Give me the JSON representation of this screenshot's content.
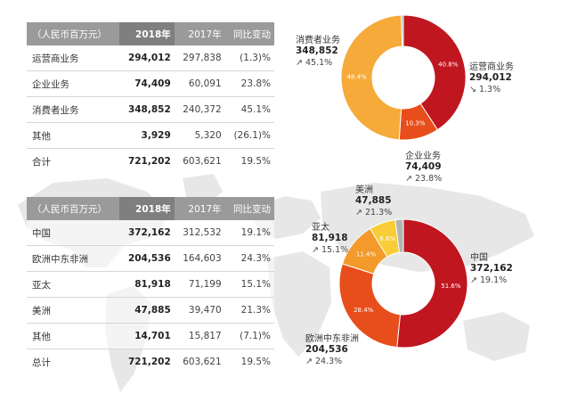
{
  "table1": {
    "headers": [
      "（人民币百万元）",
      "2018年",
      "2017年",
      "同比变动"
    ],
    "rows": [
      [
        "运营商业务",
        "294,012",
        "297,838",
        "(1.3)%"
      ],
      [
        "企业业务",
        "74,409",
        "60,091",
        "23.8%"
      ],
      [
        "消费者业务",
        "348,852",
        "240,372",
        "45.1%"
      ],
      [
        "其他",
        "3,929",
        "5,320",
        "(26.1)%"
      ]
    ],
    "total": [
      "合计",
      "721,202",
      "603,621",
      "19.5%"
    ]
  },
  "table2": {
    "headers": [
      "（人民币百万元）",
      "2018年",
      "2017年",
      "同比变动"
    ],
    "rows": [
      [
        "中国",
        "372,162",
        "312,532",
        "19.1%"
      ],
      [
        "欧洲中东非洲",
        "204,536",
        "164,603",
        "24.3%"
      ],
      [
        "亚太",
        "81,918",
        "71,199",
        "15.1%"
      ],
      [
        "美洲",
        "47,885",
        "39,470",
        "21.3%"
      ],
      [
        "其他",
        "14,701",
        "15,817",
        "(7.1)%"
      ]
    ],
    "total": [
      "总计",
      "721,202",
      "603,621",
      "19.5%"
    ]
  },
  "colors": {
    "dark_red": "#c0161f",
    "orange_red": "#e84e1b",
    "orange": "#f39a2a",
    "light_orange": "#f6aa3a",
    "yellow": "#f8cd38",
    "gray_slice": "#b3b3b3",
    "grid": "#d6d6d6"
  },
  "arrow_glyph": "↗",
  "down_arrow_glyph": "↘",
  "chart_data": [
    {
      "type": "pie",
      "donut": true,
      "slices": [
        {
          "name": "运营商业务",
          "value": 294012,
          "pct_label": "40.8%",
          "color": "#c0161f",
          "change": "1.3%",
          "trend": "down"
        },
        {
          "name": "企业业务",
          "value": 74409,
          "pct_label": "10.3%",
          "color": "#e84e1b",
          "change": "23.8%",
          "trend": "up"
        },
        {
          "name": "消费者业务",
          "value": 348852,
          "pct_label": "48.4%",
          "color": "#f6aa3a",
          "change": "45.1%",
          "trend": "up"
        },
        {
          "name": "其他",
          "value": 3929,
          "pct_label": "",
          "color": "#b3b3b3",
          "change": "",
          "trend": ""
        }
      ],
      "callouts": [
        {
          "slice": 0,
          "name": "运营商业务",
          "value": "294,012",
          "change": "1.3%",
          "trend": "down"
        },
        {
          "slice": 1,
          "name": "企业业务",
          "value": "74,409",
          "change": "23.8%",
          "trend": "up"
        },
        {
          "slice": 2,
          "name": "消费者业务",
          "value": "348,852",
          "change": "45.1%",
          "trend": "up"
        }
      ]
    },
    {
      "type": "pie",
      "donut": true,
      "slices": [
        {
          "name": "中国",
          "value": 372162,
          "pct_label": "51.6%",
          "color": "#c0161f"
        },
        {
          "name": "欧洲中东非洲",
          "value": 204536,
          "pct_label": "28.4%",
          "color": "#e84e1b"
        },
        {
          "name": "亚太",
          "value": 81918,
          "pct_label": "11.4%",
          "color": "#f39a2a"
        },
        {
          "name": "美洲",
          "value": 47885,
          "pct_label": "6.6%",
          "color": "#f8cd38"
        },
        {
          "name": "其他",
          "value": 14701,
          "pct_label": "",
          "color": "#b3b3b3"
        }
      ],
      "callouts": [
        {
          "slice": 0,
          "name": "中国",
          "value": "372,162",
          "change": "19.1%",
          "trend": "up"
        },
        {
          "slice": 1,
          "name": "欧洲中东非洲",
          "value": "204,536",
          "change": "24.3%",
          "trend": "up"
        },
        {
          "slice": 2,
          "name": "亚太",
          "value": "81,918",
          "change": "15.1%",
          "trend": "up"
        },
        {
          "slice": 3,
          "name": "美洲",
          "value": "47,885",
          "change": "21.3%",
          "trend": "up"
        }
      ]
    }
  ]
}
